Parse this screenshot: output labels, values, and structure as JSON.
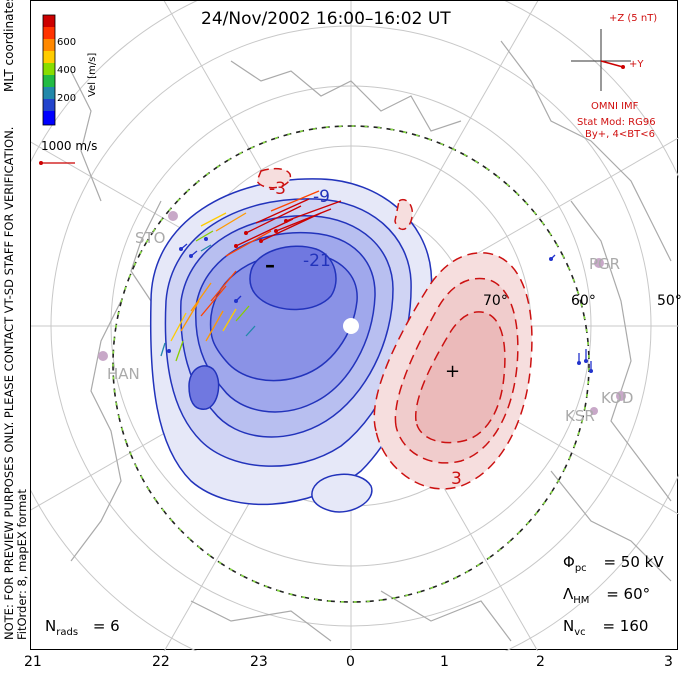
{
  "title": "24/Nov/2002 16:00–16:02 UT",
  "side_notes": {
    "coords": "MLT coordinates",
    "preview": "NOTE: FOR PREVIEW PURPOSES ONLY. PLEASE CONTACT VT-SD STAFF FOR VERIFICATION.",
    "fit": "FitOrder: 8, mapEX format"
  },
  "colorbar": {
    "label": "Vel [m/s]",
    "ticks": [
      "600",
      "400",
      "200"
    ],
    "colors": [
      "#cc0000",
      "#ff3300",
      "#ff8800",
      "#ffcc00",
      "#88dd00",
      "#22bb44",
      "#2288aa",
      "#2244cc",
      "#0000ff"
    ]
  },
  "reference_vector": {
    "label": "1000 m/s"
  },
  "imf": {
    "z_label": "+Z (5 nT)",
    "y_label": "+Y",
    "source": "OMNI IMF",
    "model": "Stat Mod: RG96",
    "condition": "By+, 4<BT<6"
  },
  "stations": [
    "PGR",
    "KOD",
    "KSR",
    "HAN",
    "STO"
  ],
  "latitude_labels": [
    "70°",
    "60°",
    "50°"
  ],
  "contour_labels": {
    "negative": [
      "-9",
      "-21",
      "-3"
    ],
    "positive": [
      "3"
    ],
    "min_marker": "–",
    "max_marker": "+"
  },
  "stats": {
    "phi_label": "Φ",
    "phi_sub": "pc",
    "phi_value": "= 50 kV",
    "lambda_label": "Λ",
    "lambda_sub": "HM",
    "lambda_value": "= 60°",
    "nvc_label": "N",
    "nvc_sub": "vc",
    "nvc_value": "= 160",
    "nrads_label": "N",
    "nrads_sub": "rads",
    "nrads_value": "= 6"
  },
  "mlt_axis": [
    "21",
    "22",
    "23",
    "0",
    "1",
    "2",
    "3"
  ]
}
